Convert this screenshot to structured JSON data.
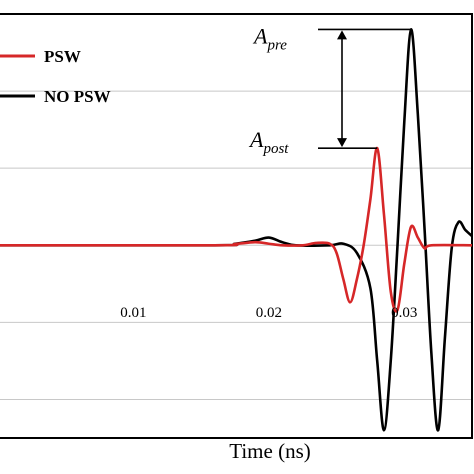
{
  "chart_data": {
    "type": "line",
    "title": "",
    "xlabel": "Time (ns)",
    "ylabel": "",
    "xlim": [
      0.0,
      0.035
    ],
    "ylim": [
      -1.25,
      1.5
    ],
    "x_ticks": [
      0.01,
      0.02,
      0.03
    ],
    "x_tick_labels": [
      "0.01",
      "0.02",
      "0.03"
    ],
    "grid": "horizontal",
    "legend_position": "top-left",
    "series": [
      {
        "name": "PSW",
        "color": "#d62728",
        "points": [
          [
            0.0,
            0.0
          ],
          [
            0.016,
            0.0
          ],
          [
            0.0175,
            0.008
          ],
          [
            0.019,
            0.02
          ],
          [
            0.02,
            0.01
          ],
          [
            0.021,
            0.0
          ],
          [
            0.0225,
            0.0
          ],
          [
            0.0235,
            0.015
          ],
          [
            0.0245,
            0.01
          ],
          [
            0.025,
            -0.05
          ],
          [
            0.0255,
            -0.22
          ],
          [
            0.026,
            -0.37
          ],
          [
            0.0265,
            -0.22
          ],
          [
            0.027,
            0.0
          ],
          [
            0.0275,
            0.3
          ],
          [
            0.028,
            0.63
          ],
          [
            0.0285,
            0.2
          ],
          [
            0.029,
            -0.3
          ],
          [
            0.0295,
            -0.42
          ],
          [
            0.03,
            -0.12
          ],
          [
            0.0305,
            0.12
          ],
          [
            0.031,
            0.05
          ],
          [
            0.0315,
            -0.02
          ],
          [
            0.032,
            0.0
          ],
          [
            0.035,
            0.0
          ]
        ]
      },
      {
        "name": "NO PSW",
        "color": "#000000",
        "points": [
          [
            0.0,
            0.0
          ],
          [
            0.016,
            0.0
          ],
          [
            0.0175,
            0.01
          ],
          [
            0.019,
            0.03
          ],
          [
            0.02,
            0.05
          ],
          [
            0.021,
            0.02
          ],
          [
            0.022,
            0.0
          ],
          [
            0.0245,
            0.0
          ],
          [
            0.0255,
            0.01
          ],
          [
            0.0265,
            -0.05
          ],
          [
            0.0275,
            -0.28
          ],
          [
            0.028,
            -0.75
          ],
          [
            0.0285,
            -1.2
          ],
          [
            0.029,
            -0.75
          ],
          [
            0.0295,
            0.0
          ],
          [
            0.03,
            0.8
          ],
          [
            0.0305,
            1.4
          ],
          [
            0.031,
            0.85
          ],
          [
            0.0315,
            0.1
          ],
          [
            0.032,
            -0.7
          ],
          [
            0.0325,
            -1.2
          ],
          [
            0.033,
            -0.6
          ],
          [
            0.0335,
            -0.02
          ],
          [
            0.034,
            0.15
          ],
          [
            0.0345,
            0.1
          ],
          [
            0.035,
            0.06
          ]
        ]
      }
    ],
    "annotations": [
      {
        "main": "A",
        "sub": "pre",
        "value": 1.4
      },
      {
        "main": "A",
        "sub": "post",
        "value": 0.63
      }
    ]
  }
}
